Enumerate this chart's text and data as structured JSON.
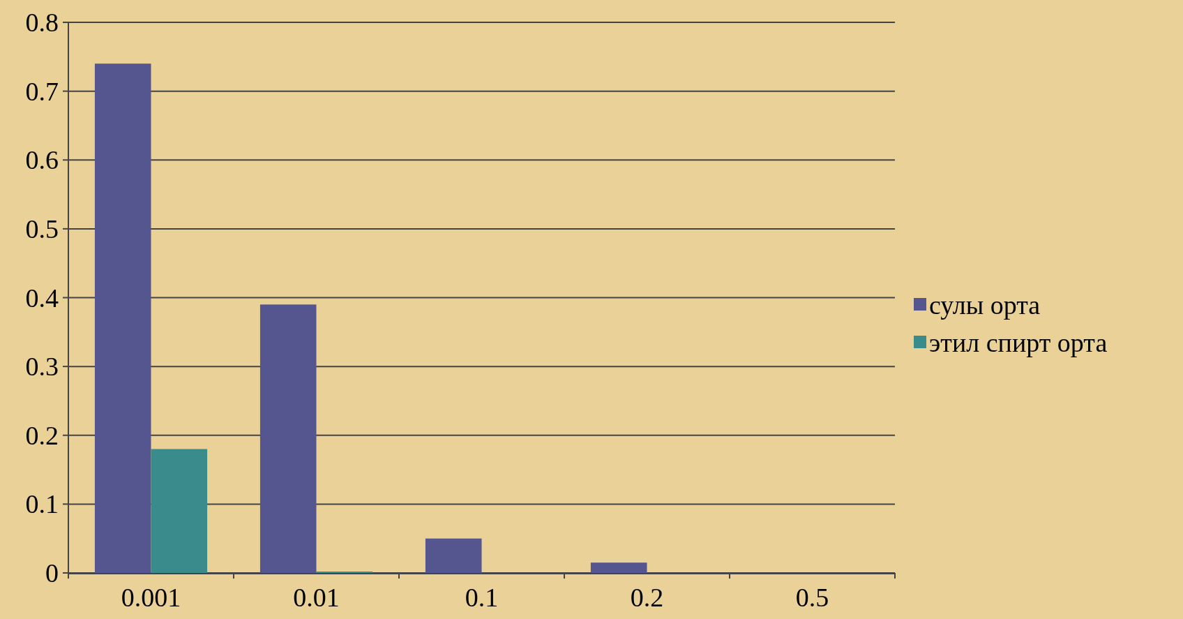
{
  "chart_data": {
    "type": "bar",
    "categories": [
      "0.001",
      "0.01",
      "0.1",
      "0.2",
      "0.5"
    ],
    "series": [
      {
        "name": "сулы орта",
        "color": "#55558f",
        "values": [
          0.74,
          0.39,
          0.05,
          0.015,
          0
        ]
      },
      {
        "name": "этил спирт орта",
        "color": "#3a8c8c",
        "values": [
          0.18,
          0.002,
          0,
          0,
          0
        ]
      }
    ],
    "ylim": [
      0,
      0.8
    ],
    "yticks": [
      {
        "value": 0,
        "label": "0"
      },
      0.1,
      0.2,
      0.3,
      0.4,
      0.5,
      0.6,
      0.7,
      0.8
    ],
    "grid": "y",
    "legend": "right"
  }
}
